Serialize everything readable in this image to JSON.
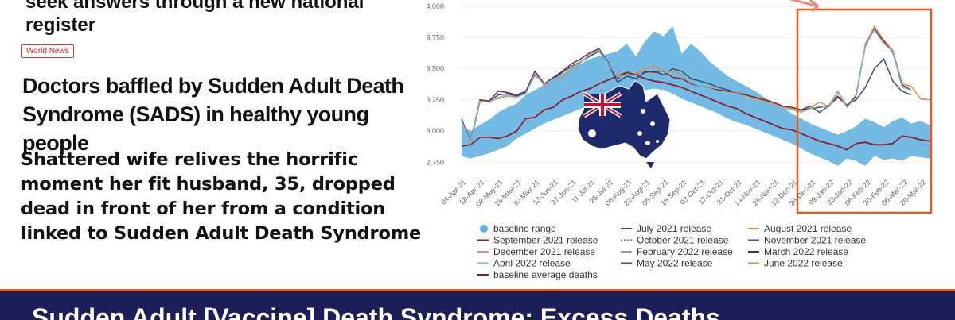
{
  "left": {
    "headline_top": "seek answers through a new national register",
    "badge": "World News",
    "headline_mid": "Doctors baffled by Sudden Adult Death Syndrome (SADS) in healthy young people",
    "headline_bot": "Shattered wife relives the horrific moment her fit husband, 35, dropped dead in front of her from a condition linked to Sudden Adult Death Syndrome"
  },
  "banner": {
    "text": "Sudden Adult [Vaccine] Death Syndrome: Excess Deaths"
  },
  "colors": {
    "band": "#5aafdf",
    "baseline": "#8b1f2e",
    "highlight": "#e35b1d"
  },
  "icons": {
    "overlay": "australia-flag-map-icon"
  },
  "chart_data": {
    "type": "line",
    "ylim": [
      2650,
      4000
    ],
    "yticks": [
      "4,000",
      "3,750",
      "3,500",
      "3,250",
      "3,000",
      "2,750"
    ],
    "ytick_values": [
      4000,
      3750,
      3500,
      3250,
      3000,
      2750
    ],
    "x_tick_labels": [
      "04-Apr-21",
      "18-Apr-21",
      "02-May-21",
      "16-May-21",
      "30-May-21",
      "13-Jun-21",
      "27-Jun-21",
      "11-Jul-21",
      "25-Jul-21",
      "08-Aug-21",
      "22-Aug-21",
      "05-Sep-21",
      "19-Sep-21",
      "03-Oct-21",
      "17-Oct-21",
      "31-Oct-21",
      "14-Nov-21",
      "28-Nov-21",
      "12-Dec-21",
      "26-Dec-21",
      "09-Jan-22",
      "23-Jan-22",
      "06-Feb-22",
      "20-Feb-22",
      "06-Mar-22",
      "20-Mar-22"
    ],
    "n_points": 52,
    "baseline_range": {
      "low": [
        2800,
        2780,
        2800,
        2820,
        2850,
        2880,
        2940,
        2980,
        3020,
        3060,
        3090,
        3120,
        3150,
        3180,
        3210,
        3250,
        3280,
        3300,
        3320,
        3330,
        3330,
        3340,
        3330,
        3300,
        3260,
        3230,
        3200,
        3170,
        3140,
        3100,
        3070,
        3050,
        3020,
        2990,
        2960,
        2930,
        2900,
        2860,
        2820,
        2790,
        2760,
        2720,
        2780,
        2760,
        2720,
        2800,
        2770,
        2780,
        2760,
        2800,
        2790,
        2780
      ],
      "high": [
        3050,
        3000,
        3050,
        3090,
        3150,
        3190,
        3220,
        3290,
        3330,
        3370,
        3420,
        3460,
        3500,
        3540,
        3580,
        3600,
        3620,
        3640,
        3700,
        3600,
        3720,
        3800,
        3760,
        3840,
        3620,
        3700,
        3640,
        3560,
        3500,
        3440,
        3400,
        3360,
        3320,
        3270,
        3230,
        3190,
        3140,
        3100,
        3060,
        3030,
        3000,
        2970,
        3000,
        3040,
        3100,
        3070,
        3030,
        3080,
        3110,
        3060,
        3080,
        3050
      ]
    },
    "series": [
      {
        "name": "baseline average deaths",
        "color": "#8b1f2e",
        "values": [
          2880,
          2890,
          2950,
          2950,
          2940,
          2960,
          3000,
          3100,
          3110,
          3170,
          3190,
          3250,
          3280,
          3320,
          3340,
          3380,
          3410,
          3440,
          3470,
          3450,
          3420,
          3400,
          3390,
          3370,
          3350,
          3320,
          3290,
          3260,
          3230,
          3200,
          3180,
          3140,
          3110,
          3080,
          3050,
          3020,
          3010,
          2980,
          2950,
          2920,
          2900,
          2880,
          2850,
          2900,
          2910,
          2890,
          2890,
          2900,
          2960,
          2950,
          2930,
          2920
        ]
      },
      {
        "name": "July 2021 release",
        "color": "#2e4a6b",
        "values": [
          3100,
          2900,
          3250,
          3240,
          3290,
          3300,
          3280,
          3310,
          3450,
          3380,
          3420,
          3470,
          3520,
          3560,
          3600,
          3640,
          3540,
          3390,
          3440,
          3420,
          3470,
          3480,
          3450,
          3500,
          3480,
          3420,
          3400,
          3380,
          3350,
          3330,
          3310,
          3290,
          3270,
          3250,
          3230,
          3200,
          3190,
          3170,
          3200,
          3150,
          3200,
          3270,
          3210,
          3250,
          3350,
          3500,
          3580,
          3400,
          3320,
          3290,
          null,
          null
        ]
      },
      {
        "name": "August 2021 release",
        "color": "#e8873a",
        "values": [
          3080,
          2900,
          3230,
          3240,
          3260,
          3280,
          3270,
          3300,
          3480,
          3360,
          3420,
          3430,
          3500,
          3550,
          3620,
          3660,
          3540,
          3440,
          3460,
          3460,
          3500,
          3520,
          3480,
          3480,
          3450,
          3390,
          3360,
          3350,
          3330,
          3320,
          3310,
          3280,
          3260,
          3240,
          3220,
          3190,
          3180,
          3160,
          3190,
          3230,
          3200,
          3320,
          3200,
          3290,
          3700,
          3840,
          3730,
          3650,
          3380,
          3360,
          3260,
          3250
        ]
      },
      {
        "name": "September 2021 release",
        "color": "#8b1f2e",
        "values": [
          3090,
          2920,
          3250,
          3240,
          3320,
          3310,
          3290,
          3320,
          3480,
          3380,
          3430,
          3480,
          3540,
          3580,
          3630,
          3660,
          3550,
          3420,
          3470,
          3450,
          3480,
          3470,
          3480,
          3430,
          3420,
          3380,
          3360,
          3340,
          3330,
          3320,
          3300,
          3290,
          3270,
          3250,
          3230,
          3200,
          3190,
          3170,
          3180,
          3190,
          3200,
          3280,
          3200,
          3280,
          3680,
          3820,
          3720,
          3630,
          3370,
          3330,
          null,
          null
        ]
      },
      {
        "name": "April 2022 release",
        "color": "#6ec1e4",
        "values": [
          3080,
          2910,
          3240,
          3230,
          3270,
          3290,
          3270,
          3300,
          3460,
          3370,
          3420,
          3440,
          3510,
          3560,
          3610,
          3650,
          3540,
          3430,
          3450,
          3440,
          3490,
          3490,
          3470,
          3470,
          3440,
          3390,
          3360,
          3340,
          3320,
          3310,
          3300,
          3270,
          3250,
          3230,
          3210,
          3180,
          3170,
          3150,
          3180,
          3200,
          3190,
          3310,
          3190,
          3270,
          3690,
          3810,
          3700,
          3640,
          3350,
          3330,
          null,
          null
        ]
      }
    ],
    "legend": [
      {
        "label": "baseline range",
        "color": "#5aafdf",
        "kind": "dot"
      },
      {
        "label": "July 2021 release",
        "color": "#2e4a6b",
        "kind": "line"
      },
      {
        "label": "August 2021 release",
        "color": "#e8873a",
        "kind": "line"
      },
      {
        "label": "September 2021 release",
        "color": "#8b1f2e",
        "kind": "line"
      },
      {
        "label": "October 2021 release",
        "color": "#c9566b",
        "kind": "dash"
      },
      {
        "label": "November 2021 release",
        "color": "#5a4ea3",
        "kind": "line"
      },
      {
        "label": "December 2021 release",
        "color": "#c98ec9",
        "kind": "line"
      },
      {
        "label": "February 2022 release",
        "color": "#9a9a9a",
        "kind": "line"
      },
      {
        "label": "March 2022 release",
        "color": "#3b3b3b",
        "kind": "line"
      },
      {
        "label": "April 2022 release",
        "color": "#6ec1e4",
        "kind": "line"
      },
      {
        "label": "May 2022 release",
        "color": "#2a5f73",
        "kind": "line"
      },
      {
        "label": "June 2022 release",
        "color": "#e8873a",
        "kind": "line"
      },
      {
        "label": "baseline average deaths",
        "color": "#8b1f2e",
        "kind": "line"
      }
    ]
  }
}
